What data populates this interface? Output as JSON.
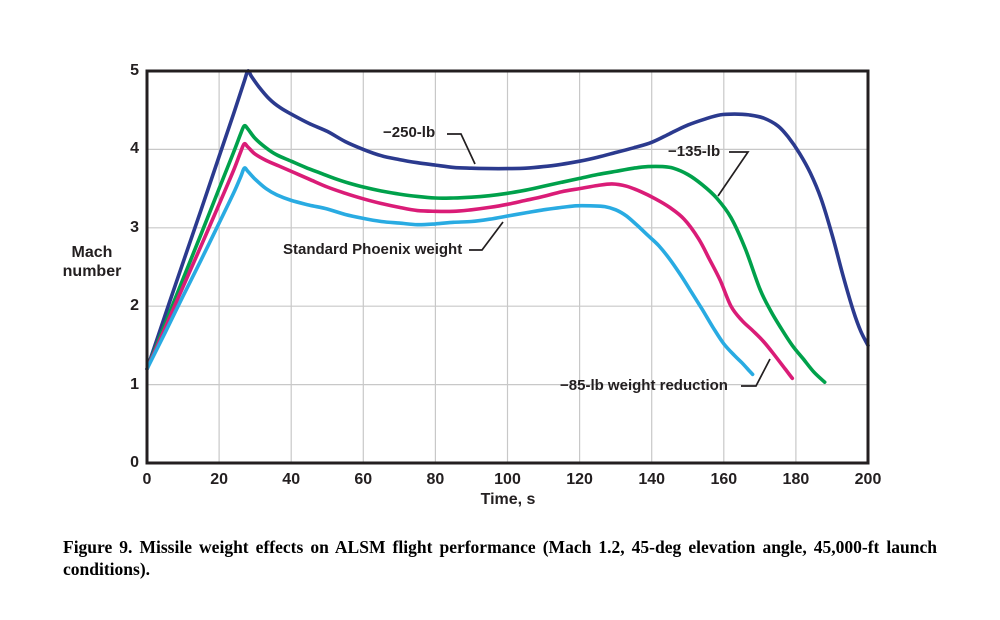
{
  "figure": {
    "caption": "Figure 9. Missile weight effects on ALSM flight performance (Mach 1.2, 45-deg elevation angle, 45,000-ft launch conditions)."
  },
  "chart_data": {
    "type": "line",
    "title": "",
    "xlabel": "Time, s",
    "ylabel": "Mach number",
    "xlim": [
      0,
      200
    ],
    "ylim": [
      0,
      5
    ],
    "x_ticks": [
      0,
      20,
      40,
      60,
      80,
      100,
      120,
      140,
      160,
      180,
      200
    ],
    "y_ticks": [
      0,
      1,
      2,
      3,
      4,
      5
    ],
    "grid": true,
    "grid_color": "#c8c8c8",
    "frame_color": "#231f20",
    "legend_position": "annotations-on-curves",
    "series": [
      {
        "name": "-250-lb weight reduction",
        "label": "−250-lb",
        "color": "#2b3a8e",
        "points": [
          [
            0,
            1.2
          ],
          [
            5,
            1.88
          ],
          [
            10,
            2.56
          ],
          [
            15,
            3.23
          ],
          [
            20,
            3.91
          ],
          [
            24,
            4.45
          ],
          [
            27,
            4.87
          ],
          [
            28,
            5.0
          ],
          [
            29,
            4.93
          ],
          [
            31,
            4.8
          ],
          [
            34,
            4.64
          ],
          [
            37,
            4.53
          ],
          [
            40,
            4.45
          ],
          [
            45,
            4.33
          ],
          [
            50,
            4.23
          ],
          [
            55,
            4.1
          ],
          [
            60,
            4.0
          ],
          [
            65,
            3.92
          ],
          [
            70,
            3.87
          ],
          [
            75,
            3.83
          ],
          [
            80,
            3.8
          ],
          [
            85,
            3.77
          ],
          [
            90,
            3.76
          ],
          [
            95,
            3.755
          ],
          [
            100,
            3.755
          ],
          [
            105,
            3.76
          ],
          [
            110,
            3.78
          ],
          [
            115,
            3.81
          ],
          [
            120,
            3.85
          ],
          [
            125,
            3.9
          ],
          [
            130,
            3.96
          ],
          [
            135,
            4.02
          ],
          [
            140,
            4.09
          ],
          [
            145,
            4.2
          ],
          [
            150,
            4.31
          ],
          [
            155,
            4.39
          ],
          [
            159,
            4.44
          ],
          [
            163,
            4.45
          ],
          [
            167,
            4.44
          ],
          [
            171,
            4.4
          ],
          [
            175,
            4.3
          ],
          [
            178,
            4.15
          ],
          [
            181,
            3.95
          ],
          [
            184,
            3.7
          ],
          [
            187,
            3.37
          ],
          [
            190,
            2.92
          ],
          [
            193,
            2.4
          ],
          [
            196,
            1.93
          ],
          [
            198,
            1.68
          ],
          [
            200,
            1.5
          ]
        ]
      },
      {
        "name": "-135-lb weight reduction",
        "label": "−135-lb",
        "color": "#00a14b",
        "points": [
          [
            0,
            1.2
          ],
          [
            5,
            1.77
          ],
          [
            10,
            2.35
          ],
          [
            15,
            2.92
          ],
          [
            20,
            3.5
          ],
          [
            24,
            3.96
          ],
          [
            26,
            4.2
          ],
          [
            27,
            4.3
          ],
          [
            28,
            4.26
          ],
          [
            30,
            4.14
          ],
          [
            33,
            4.02
          ],
          [
            36,
            3.93
          ],
          [
            40,
            3.85
          ],
          [
            44,
            3.77
          ],
          [
            48,
            3.7
          ],
          [
            52,
            3.63
          ],
          [
            56,
            3.57
          ],
          [
            60,
            3.52
          ],
          [
            65,
            3.47
          ],
          [
            70,
            3.43
          ],
          [
            75,
            3.4
          ],
          [
            80,
            3.38
          ],
          [
            85,
            3.38
          ],
          [
            90,
            3.39
          ],
          [
            95,
            3.41
          ],
          [
            100,
            3.44
          ],
          [
            105,
            3.48
          ],
          [
            110,
            3.53
          ],
          [
            115,
            3.58
          ],
          [
            120,
            3.63
          ],
          [
            125,
            3.68
          ],
          [
            130,
            3.72
          ],
          [
            135,
            3.76
          ],
          [
            139,
            3.78
          ],
          [
            143,
            3.78
          ],
          [
            146,
            3.76
          ],
          [
            150,
            3.68
          ],
          [
            154,
            3.55
          ],
          [
            158,
            3.38
          ],
          [
            162,
            3.13
          ],
          [
            166,
            2.73
          ],
          [
            170,
            2.22
          ],
          [
            173,
            1.94
          ],
          [
            176,
            1.71
          ],
          [
            179,
            1.5
          ],
          [
            182,
            1.33
          ],
          [
            185,
            1.16
          ],
          [
            188,
            1.03
          ]
        ]
      },
      {
        "name": "-85-lb weight reduction",
        "label": "−85-lb weight reduction",
        "color": "#da1c77",
        "points": [
          [
            0,
            1.2
          ],
          [
            5,
            1.72
          ],
          [
            10,
            2.25
          ],
          [
            15,
            2.77
          ],
          [
            20,
            3.3
          ],
          [
            24,
            3.73
          ],
          [
            26,
            3.97
          ],
          [
            27,
            4.07
          ],
          [
            28,
            4.03
          ],
          [
            30,
            3.94
          ],
          [
            33,
            3.86
          ],
          [
            37,
            3.78
          ],
          [
            41,
            3.7
          ],
          [
            45,
            3.62
          ],
          [
            50,
            3.52
          ],
          [
            55,
            3.44
          ],
          [
            60,
            3.37
          ],
          [
            65,
            3.31
          ],
          [
            70,
            3.26
          ],
          [
            75,
            3.22
          ],
          [
            80,
            3.21
          ],
          [
            85,
            3.21
          ],
          [
            90,
            3.23
          ],
          [
            95,
            3.26
          ],
          [
            100,
            3.3
          ],
          [
            105,
            3.35
          ],
          [
            110,
            3.4
          ],
          [
            115,
            3.46
          ],
          [
            120,
            3.5
          ],
          [
            125,
            3.54
          ],
          [
            129,
            3.56
          ],
          [
            133,
            3.53
          ],
          [
            137,
            3.46
          ],
          [
            141,
            3.37
          ],
          [
            145,
            3.26
          ],
          [
            149,
            3.11
          ],
          [
            153,
            2.86
          ],
          [
            156,
            2.6
          ],
          [
            159,
            2.33
          ],
          [
            162,
            2.0
          ],
          [
            165,
            1.82
          ],
          [
            168,
            1.69
          ],
          [
            171,
            1.55
          ],
          [
            174,
            1.38
          ],
          [
            177,
            1.2
          ],
          [
            179,
            1.08
          ]
        ]
      },
      {
        "name": "Standard Phoenix weight",
        "label": "Standard Phoenix weight",
        "color": "#29abe2",
        "points": [
          [
            0,
            1.2
          ],
          [
            5,
            1.66
          ],
          [
            10,
            2.13
          ],
          [
            15,
            2.59
          ],
          [
            20,
            3.06
          ],
          [
            24,
            3.44
          ],
          [
            26,
            3.65
          ],
          [
            27,
            3.76
          ],
          [
            28,
            3.72
          ],
          [
            30,
            3.62
          ],
          [
            33,
            3.5
          ],
          [
            36,
            3.42
          ],
          [
            40,
            3.35
          ],
          [
            45,
            3.29
          ],
          [
            50,
            3.24
          ],
          [
            55,
            3.17
          ],
          [
            60,
            3.12
          ],
          [
            65,
            3.08
          ],
          [
            70,
            3.06
          ],
          [
            75,
            3.04
          ],
          [
            80,
            3.05
          ],
          [
            85,
            3.07
          ],
          [
            90,
            3.08
          ],
          [
            95,
            3.11
          ],
          [
            100,
            3.15
          ],
          [
            105,
            3.19
          ],
          [
            110,
            3.23
          ],
          [
            115,
            3.26
          ],
          [
            119,
            3.28
          ],
          [
            123,
            3.28
          ],
          [
            127,
            3.27
          ],
          [
            130,
            3.23
          ],
          [
            133,
            3.15
          ],
          [
            136,
            3.03
          ],
          [
            139,
            2.9
          ],
          [
            142,
            2.77
          ],
          [
            145,
            2.6
          ],
          [
            148,
            2.4
          ],
          [
            151,
            2.18
          ],
          [
            154,
            1.96
          ],
          [
            157,
            1.73
          ],
          [
            160,
            1.52
          ],
          [
            163,
            1.37
          ],
          [
            165,
            1.28
          ],
          [
            167,
            1.18
          ],
          [
            168,
            1.13
          ]
        ]
      }
    ]
  }
}
